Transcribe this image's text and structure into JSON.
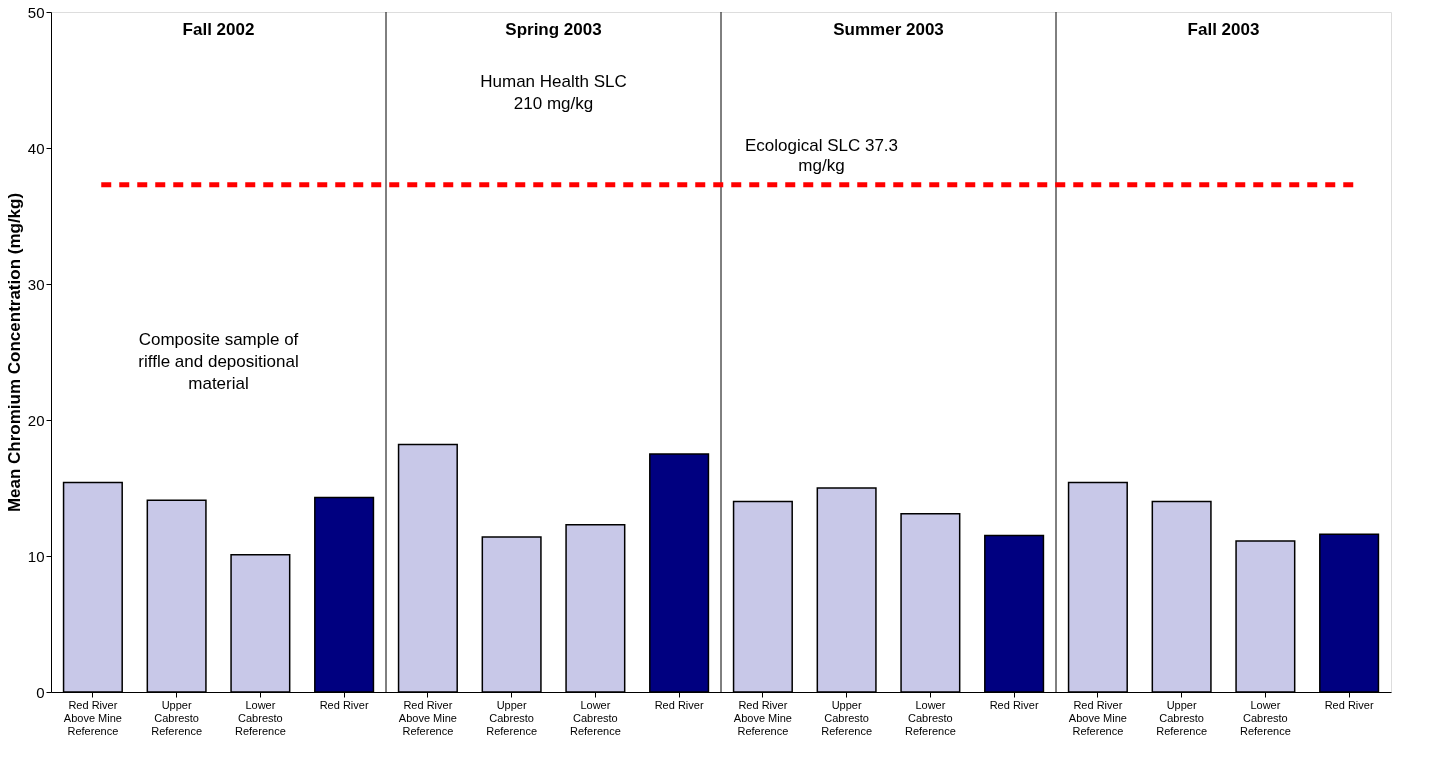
{
  "chart_data": {
    "type": "bar",
    "categories": [
      "Red River\nAbove Mine\nReference",
      "Upper\nCabresto\nReference",
      "Lower\nCabresto\nReference",
      "Red River",
      "Red River\nAbove Mine\nReference",
      "Upper\nCabresto\nReference",
      "Lower\nCabresto\nReference",
      "Red River",
      "Red River\nAbove Mine\nReference",
      "Upper\nCabresto\nReference",
      "Lower\nCabresto\nReference",
      "Red River",
      "Red River\nAbove Mine\nReference",
      "Upper\nCabresto\nReference",
      "Lower\nCabresto\nReference",
      "Red River"
    ],
    "values": [
      15.4,
      14.1,
      10.1,
      14.3,
      18.2,
      11.4,
      12.3,
      17.5,
      14.0,
      15.0,
      13.1,
      11.5,
      15.4,
      14.0,
      11.1,
      11.6
    ],
    "colors": [
      "#c8c8e8",
      "#c8c8e8",
      "#c8c8e8",
      "#000080",
      "#c8c8e8",
      "#c8c8e8",
      "#c8c8e8",
      "#000080",
      "#c8c8e8",
      "#c8c8e8",
      "#c8c8e8",
      "#000080",
      "#c8c8e8",
      "#c8c8e8",
      "#c8c8e8",
      "#000080"
    ],
    "ylabel": "Mean Chromium Concentration (mg/kg)",
    "ylim": [
      0,
      50
    ],
    "yticks": [
      0,
      10,
      20,
      30,
      40,
      50
    ],
    "grid": false,
    "ref_lines": [
      {
        "axis": "y",
        "value": 37.3,
        "label": "Ecological SLC 37.3\nmg/kg",
        "color": "#ff0000",
        "line_style": "dashed"
      }
    ],
    "annotations": [
      "Fall 2002",
      "Spring 2003",
      "Summer 2003",
      "Fall 2003",
      "Composite sample of\nriffle and depositional\nmaterial",
      "Human Health SLC\n210 mg/kg"
    ]
  }
}
